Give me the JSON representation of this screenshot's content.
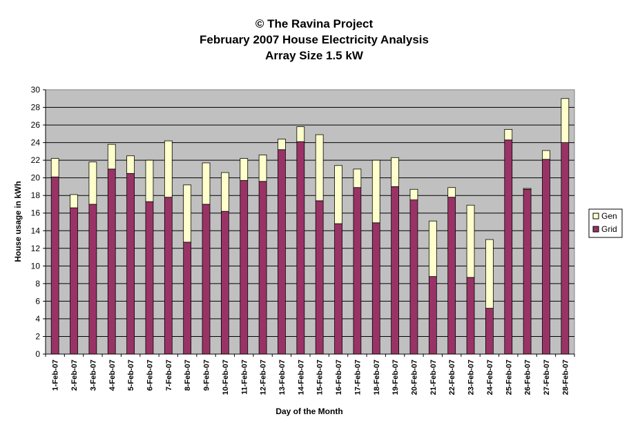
{
  "chart_data": {
    "type": "bar",
    "stacked": true,
    "title": [
      "© The Ravina Project",
      "February 2007 House Electricity Analysis",
      "Array Size 1.5 kW"
    ],
    "xlabel": "Day of the Month",
    "ylabel": "House usage in kWh",
    "ylim": [
      0,
      30
    ],
    "ytick_step": 2,
    "grid": true,
    "legend_position": "right",
    "categories": [
      "1-Feb-07",
      "2-Feb-07",
      "3-Feb-07",
      "4-Feb-07",
      "5-Feb-07",
      "6-Feb-07",
      "7-Feb-07",
      "8-Feb-07",
      "9-Feb-07",
      "10-Feb-07",
      "11-Feb-07",
      "12-Feb-07",
      "13-Feb-07",
      "14-Feb-07",
      "15-Feb-07",
      "16-Feb-07",
      "17-Feb-07",
      "18-Feb-07",
      "19-Feb-07",
      "20-Feb-07",
      "21-Feb-07",
      "22-Feb-07",
      "23-Feb-07",
      "24-Feb-07",
      "25-Feb-07",
      "26-Feb-07",
      "27-Feb-07",
      "28-Feb-07"
    ],
    "series": [
      {
        "name": "Grid",
        "color": "#993366",
        "values": [
          20.1,
          16.6,
          17.0,
          21.0,
          20.5,
          17.3,
          17.8,
          12.7,
          17.0,
          16.2,
          19.7,
          19.6,
          23.2,
          24.1,
          17.4,
          14.8,
          18.9,
          14.9,
          19.0,
          17.5,
          8.8,
          17.8,
          8.7,
          5.2,
          24.3,
          18.7,
          22.1,
          24.0
        ]
      },
      {
        "name": "Gen",
        "color": "#ffffcc",
        "values": [
          2.1,
          1.5,
          4.8,
          2.8,
          2.0,
          4.7,
          6.4,
          6.5,
          4.7,
          4.4,
          2.5,
          3.0,
          1.2,
          1.7,
          7.5,
          6.6,
          2.1,
          7.1,
          3.3,
          1.2,
          6.3,
          1.1,
          8.2,
          7.8,
          1.2,
          0.1,
          1.0,
          5.0
        ]
      }
    ],
    "legend_order": [
      "Gen",
      "Grid"
    ],
    "plot_bg": "#c0c0c0"
  }
}
